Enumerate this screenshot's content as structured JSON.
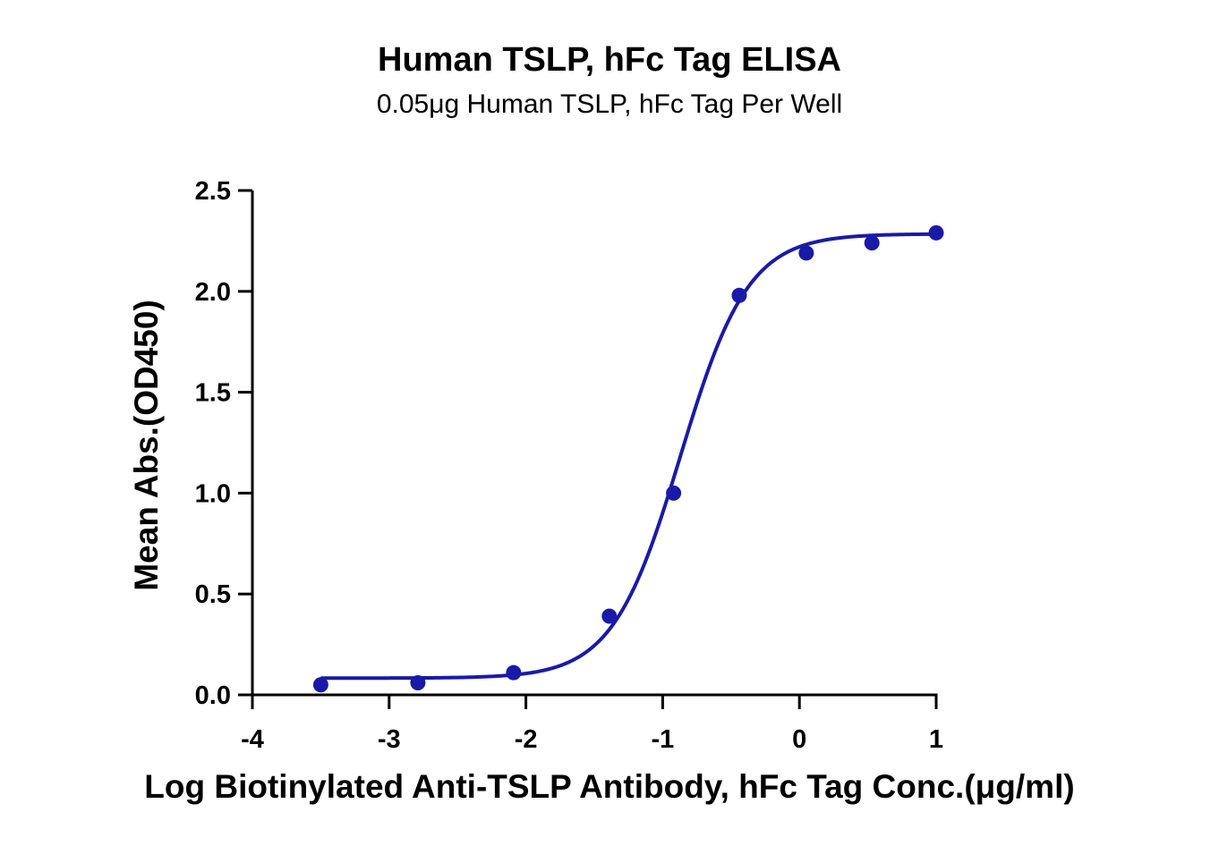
{
  "chart_data": {
    "type": "scatter",
    "title": "Human TSLP, hFc Tag ELISA",
    "subtitle": "0.05μg Human TSLP, hFc Tag Per Well",
    "xlabel": "Log Biotinylated Anti-TSLP Antibody, hFc Tag Conc.(μg/ml)",
    "ylabel": "Mean Abs.(OD450)",
    "xlim": [
      -4,
      1
    ],
    "ylim": [
      0,
      2.5
    ],
    "x_ticks": [
      -4,
      -3,
      -2,
      -1,
      0,
      1
    ],
    "x_tick_labels": [
      "-4",
      "-3",
      "-2",
      "-1",
      "0",
      "1"
    ],
    "y_ticks": [
      0,
      0.5,
      1,
      1.5,
      2,
      2.5
    ],
    "y_tick_labels": [
      "0.0",
      "0.5",
      "1.0",
      "1.5",
      "2.0",
      "2.5"
    ],
    "grid": false,
    "color": "#1a1aa8",
    "series": [
      {
        "x": [
          -3.5,
          -2.79,
          -2.09,
          -1.39,
          -0.92,
          -0.44,
          0.05,
          0.53,
          1.0
        ],
        "y": [
          0.05,
          0.06,
          0.11,
          0.39,
          1.0,
          1.98,
          2.19,
          2.24,
          2.29
        ],
        "fit": {
          "model": "4PL",
          "bottom": 0.083,
          "top": 2.285,
          "logEC50": -0.87,
          "hill": 1.75,
          "x_range": [
            -3.5,
            1.0
          ]
        }
      }
    ]
  }
}
